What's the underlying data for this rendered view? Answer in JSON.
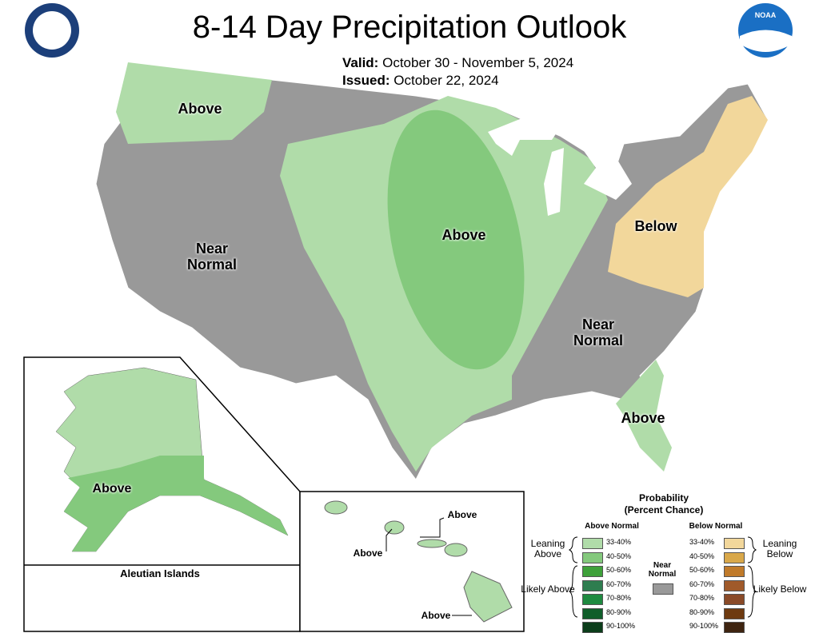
{
  "header": {
    "title": "8-14 Day Precipitation Outlook",
    "valid_label": "Valid:",
    "valid": "October 30 - November 5, 2024",
    "issued_label": "Issued:",
    "issued": "October 22, 2024",
    "logo": "NOAA"
  },
  "map_labels": {
    "northwest": "Above",
    "west": "Near Normal",
    "central": "Above",
    "northeast": "Below",
    "southeast": "Near Normal",
    "florida": "Above",
    "alaska": "Above",
    "aleutians": "Aleutian Islands",
    "hawaii_1": "Above",
    "hawaii_2": "Above",
    "hawaii_3": "Above"
  },
  "legend": {
    "title": "Probability",
    "subtitle": "(Percent Chance)",
    "above_header": "Above Normal",
    "below_header": "Below Normal",
    "near": "Near Normal",
    "near_color": "#999999",
    "leaning_above": "Leaning Above",
    "likely_above": "Likely Above",
    "leaning_below": "Leaning Below",
    "likely_below": "Likely Below",
    "above": [
      {
        "range": "33-40%",
        "color": "#b0dca9"
      },
      {
        "range": "40-50%",
        "color": "#84c97d"
      },
      {
        "range": "50-60%",
        "color": "#3ea13a"
      },
      {
        "range": "60-70%",
        "color": "#2e7d4f"
      },
      {
        "range": "70-80%",
        "color": "#1f8a40"
      },
      {
        "range": "80-90%",
        "color": "#105e2a"
      },
      {
        "range": "90-100%",
        "color": "#0b3d1a"
      }
    ],
    "below": [
      {
        "range": "33-40%",
        "color": "#f2d79b"
      },
      {
        "range": "40-50%",
        "color": "#d9a84a"
      },
      {
        "range": "50-60%",
        "color": "#c07a2a"
      },
      {
        "range": "60-70%",
        "color": "#a05a2a"
      },
      {
        "range": "70-80%",
        "color": "#8a4a28"
      },
      {
        "range": "80-90%",
        "color": "#6e3a10"
      },
      {
        "range": "90-100%",
        "color": "#3e2410"
      }
    ]
  }
}
